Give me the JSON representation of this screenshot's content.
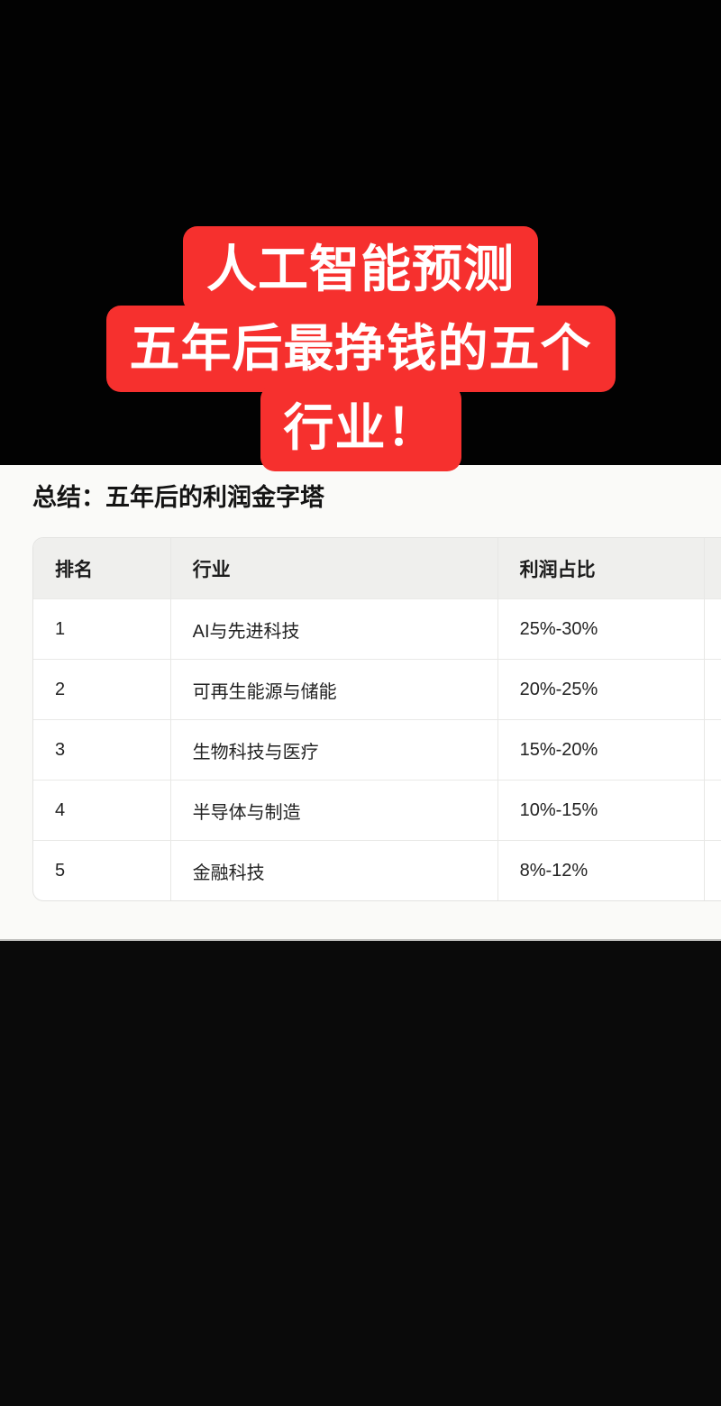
{
  "banner": {
    "lines": [
      "人工智能预测",
      "五年后最挣钱的五个",
      "行业！"
    ],
    "bg_color": "#f6302e",
    "text_color": "#ffffff"
  },
  "content": {
    "heading": "总结：五年后的利润金字塔"
  },
  "table": {
    "columns": [
      "排名",
      "行业",
      "利润占比"
    ],
    "rows": [
      {
        "rank": "1",
        "industry": "AI与先进科技",
        "share": "25%-30%"
      },
      {
        "rank": "2",
        "industry": "可再生能源与储能",
        "share": "20%-25%"
      },
      {
        "rank": "3",
        "industry": "生物科技与医疗",
        "share": "15%-20%"
      },
      {
        "rank": "4",
        "industry": "半导体与制造",
        "share": "10%-15%"
      },
      {
        "rank": "5",
        "industry": "金融科技",
        "share": "8%-12%"
      }
    ],
    "header_bg": "#efefed"
  },
  "colors": {
    "letterbox": "#000000",
    "card_bg": "#fafaf8",
    "banner_red": "#f6302e",
    "table_border": "#e7e7e5"
  }
}
